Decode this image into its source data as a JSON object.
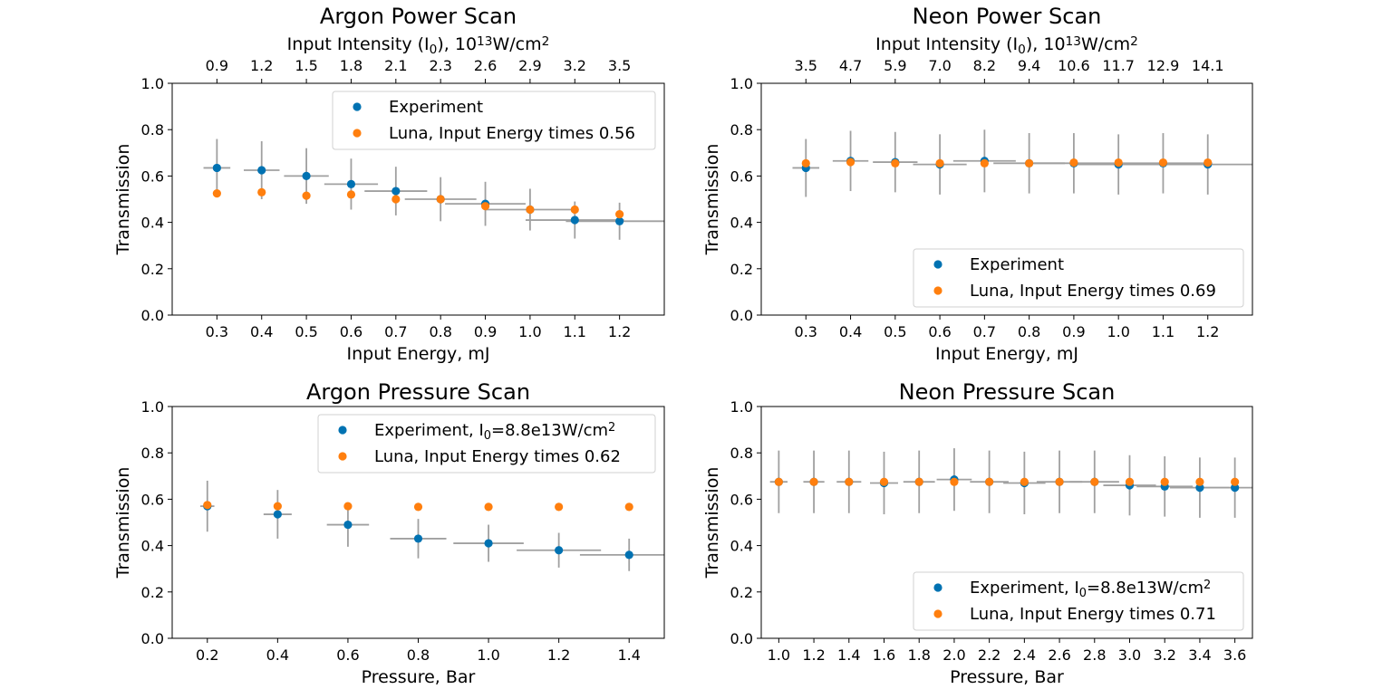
{
  "colors": {
    "experiment": "#0072b2",
    "luna": "#ff7f0e",
    "errorbar": "#a0a0a0"
  },
  "chart_data": [
    {
      "type": "scatter",
      "title": "Argon Power Scan",
      "xlabel": "Input Energy, mJ",
      "ylabel": "Transmission",
      "top_xlabel": "Input Intensity (I<sub>0</sub>), 10<sup>13</sup>W/cm<sup>2</sup>",
      "xlim": [
        0.2,
        1.3
      ],
      "ylim": [
        0.0,
        1.0
      ],
      "xticks": [
        "0.3",
        "0.4",
        "0.5",
        "0.6",
        "0.7",
        "0.8",
        "0.9",
        "1.0",
        "1.1",
        "1.2"
      ],
      "yticks": [
        "0.0",
        "0.2",
        "0.4",
        "0.6",
        "0.8",
        "1.0"
      ],
      "top_ticks": [
        "0.9",
        "1.2",
        "1.5",
        "1.8",
        "2.1",
        "2.3",
        "2.6",
        "2.9",
        "3.2",
        "3.5"
      ],
      "legend_position": "top-right",
      "series": [
        {
          "name": "Experiment",
          "x": [
            0.3,
            0.4,
            0.5,
            0.6,
            0.7,
            0.8,
            0.9,
            1.0,
            1.1,
            1.2
          ],
          "y": [
            0.635,
            0.625,
            0.6,
            0.565,
            0.535,
            0.5,
            0.48,
            0.455,
            0.41,
            0.405
          ],
          "yerr": [
            0.125,
            0.125,
            0.12,
            0.11,
            0.105,
            0.095,
            0.095,
            0.09,
            0.08,
            0.08
          ],
          "xerr": [
            0.03,
            0.04,
            0.05,
            0.06,
            0.07,
            0.08,
            0.09,
            0.1,
            0.11,
            0.12
          ]
        },
        {
          "name": "Luna, Input Energy times 0.56",
          "x": [
            0.3,
            0.4,
            0.5,
            0.6,
            0.7,
            0.8,
            0.9,
            1.0,
            1.1,
            1.2
          ],
          "y": [
            0.525,
            0.53,
            0.515,
            0.52,
            0.5,
            0.5,
            0.47,
            0.455,
            0.455,
            0.435
          ]
        }
      ]
    },
    {
      "type": "scatter",
      "title": "Neon Power Scan",
      "xlabel": "Input Energy, mJ",
      "ylabel": "Transmission",
      "top_xlabel": "Input Intensity (I<sub>0</sub>), 10<sup>13</sup>W/cm<sup>2</sup>",
      "xlim": [
        0.2,
        1.3
      ],
      "ylim": [
        0.0,
        1.0
      ],
      "xticks": [
        "0.3",
        "0.4",
        "0.5",
        "0.6",
        "0.7",
        "0.8",
        "0.9",
        "1.0",
        "1.1",
        "1.2"
      ],
      "yticks": [
        "0.0",
        "0.2",
        "0.4",
        "0.6",
        "0.8",
        "1.0"
      ],
      "top_ticks": [
        "3.5",
        "4.7",
        "5.9",
        "7.0",
        "8.2",
        "9.4",
        "10.6",
        "11.7",
        "12.9",
        "14.1"
      ],
      "legend_position": "bottom-right",
      "series": [
        {
          "name": "Experiment",
          "x": [
            0.3,
            0.4,
            0.5,
            0.6,
            0.7,
            0.8,
            0.9,
            1.0,
            1.1,
            1.2
          ],
          "y": [
            0.635,
            0.665,
            0.66,
            0.65,
            0.665,
            0.655,
            0.655,
            0.65,
            0.655,
            0.65
          ],
          "yerr": [
            0.125,
            0.13,
            0.13,
            0.13,
            0.135,
            0.13,
            0.13,
            0.13,
            0.13,
            0.13
          ],
          "xerr": [
            0.03,
            0.04,
            0.05,
            0.06,
            0.07,
            0.08,
            0.09,
            0.1,
            0.11,
            0.12
          ]
        },
        {
          "name": "Luna, Input Energy times 0.69",
          "x": [
            0.3,
            0.4,
            0.5,
            0.6,
            0.7,
            0.8,
            0.9,
            1.0,
            1.1,
            1.2
          ],
          "y": [
            0.655,
            0.66,
            0.655,
            0.655,
            0.655,
            0.655,
            0.658,
            0.658,
            0.658,
            0.658
          ]
        }
      ]
    },
    {
      "type": "scatter",
      "title": "Argon Pressure Scan",
      "xlabel": "Pressure, Bar",
      "ylabel": "Transmission",
      "xlim": [
        0.1,
        1.5
      ],
      "ylim": [
        0.0,
        1.0
      ],
      "xticks": [
        "0.2",
        "0.4",
        "0.6",
        "0.8",
        "1.0",
        "1.2",
        "1.4"
      ],
      "yticks": [
        "0.0",
        "0.2",
        "0.4",
        "0.6",
        "0.8",
        "1.0"
      ],
      "legend_position": "top-right",
      "series": [
        {
          "name": "Experiment, I<sub>0</sub>=8.8e13W/cm<sup>2</sup>",
          "x": [
            0.2,
            0.4,
            0.6,
            0.8,
            1.0,
            1.2,
            1.4
          ],
          "y": [
            0.57,
            0.535,
            0.49,
            0.43,
            0.41,
            0.38,
            0.36
          ],
          "yerr": [
            0.11,
            0.105,
            0.095,
            0.085,
            0.08,
            0.075,
            0.07
          ],
          "xerr": [
            0.02,
            0.04,
            0.06,
            0.08,
            0.1,
            0.12,
            0.14
          ]
        },
        {
          "name": "Luna, Input Energy times 0.62",
          "x": [
            0.2,
            0.4,
            0.6,
            0.8,
            1.0,
            1.2,
            1.4
          ],
          "y": [
            0.575,
            0.57,
            0.57,
            0.567,
            0.567,
            0.567,
            0.567
          ]
        }
      ]
    },
    {
      "type": "scatter",
      "title": "Neon Pressure Scan",
      "xlabel": "Pressure, Bar",
      "ylabel": "Transmission",
      "xlim": [
        0.9,
        3.7
      ],
      "ylim": [
        0.0,
        1.0
      ],
      "xticks": [
        "1.0",
        "1.2",
        "1.4",
        "1.6",
        "1.8",
        "2.0",
        "2.2",
        "2.4",
        "2.6",
        "2.8",
        "3.0",
        "3.2",
        "3.4",
        "3.6"
      ],
      "yticks": [
        "0.0",
        "0.2",
        "0.4",
        "0.6",
        "0.8",
        "1.0"
      ],
      "legend_position": "bottom-right",
      "series": [
        {
          "name": "Experiment, I<sub>0</sub>=8.8e13W/cm<sup>2</sup>",
          "x": [
            1.0,
            1.2,
            1.4,
            1.6,
            1.8,
            2.0,
            2.2,
            2.4,
            2.6,
            2.8,
            3.0,
            3.2,
            3.4,
            3.6
          ],
          "y": [
            0.675,
            0.675,
            0.675,
            0.67,
            0.675,
            0.685,
            0.675,
            0.67,
            0.675,
            0.675,
            0.66,
            0.655,
            0.65,
            0.65
          ],
          "yerr": [
            0.135,
            0.135,
            0.135,
            0.135,
            0.135,
            0.135,
            0.135,
            0.135,
            0.135,
            0.135,
            0.13,
            0.13,
            0.13,
            0.13
          ],
          "xerr": [
            0.05,
            0.06,
            0.07,
            0.08,
            0.09,
            0.1,
            0.11,
            0.12,
            0.13,
            0.14,
            0.15,
            0.16,
            0.17,
            0.18
          ]
        },
        {
          "name": "Luna, Input Energy times 0.71",
          "x": [
            1.0,
            1.2,
            1.4,
            1.6,
            1.8,
            2.0,
            2.2,
            2.4,
            2.6,
            2.8,
            3.0,
            3.2,
            3.4,
            3.6
          ],
          "y": [
            0.675,
            0.675,
            0.675,
            0.675,
            0.675,
            0.675,
            0.675,
            0.675,
            0.675,
            0.675,
            0.675,
            0.675,
            0.675,
            0.675
          ]
        }
      ]
    }
  ]
}
